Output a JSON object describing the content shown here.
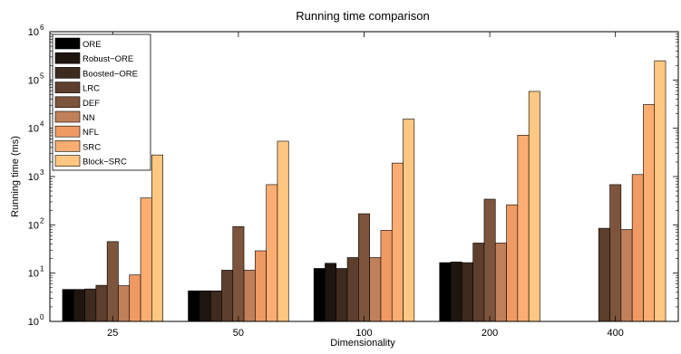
{
  "chart_data": {
    "type": "bar",
    "title": "Running time comparison",
    "xlabel": "Dimensionality",
    "ylabel": "Running time (ms)",
    "y_scale": "log",
    "ylim": [
      1,
      1000000
    ],
    "yticks": [
      {
        "value": 1,
        "base": "10",
        "exp": "0"
      },
      {
        "value": 10,
        "base": "10",
        "exp": "1"
      },
      {
        "value": 100,
        "base": "10",
        "exp": "2"
      },
      {
        "value": 1000,
        "base": "10",
        "exp": "3"
      },
      {
        "value": 10000,
        "base": "10",
        "exp": "4"
      },
      {
        "value": 100000,
        "base": "10",
        "exp": "5"
      },
      {
        "value": 1000000,
        "base": "10",
        "exp": "6"
      }
    ],
    "categories": [
      "25",
      "50",
      "100",
      "200",
      "400"
    ],
    "grid": false,
    "legend_position": "top-left",
    "series": [
      {
        "name": "ORE",
        "color": "#000000",
        "values": [
          4.6,
          4.3,
          12.5,
          16.5,
          null
        ]
      },
      {
        "name": "Robust−ORE",
        "color": "#1f150f",
        "values": [
          4.6,
          4.3,
          16,
          17,
          null
        ]
      },
      {
        "name": "Boosted−ORE",
        "color": "#3e2a1e",
        "values": [
          4.7,
          4.3,
          12.5,
          16.5,
          null
        ]
      },
      {
        "name": "LRC",
        "color": "#5e3f2d",
        "values": [
          5.6,
          11.5,
          21,
          42,
          85
        ]
      },
      {
        "name": "DEF",
        "color": "#7d543c",
        "values": [
          45,
          92,
          170,
          340,
          680
        ]
      },
      {
        "name": "NN",
        "color": "#c0805a",
        "values": [
          5.5,
          11.5,
          21,
          42,
          80
        ]
      },
      {
        "name": "NFL",
        "color": "#f09a63",
        "values": [
          9.2,
          29,
          77,
          260,
          1100
        ]
      },
      {
        "name": "SRC",
        "color": "#fcae72",
        "values": [
          360,
          680,
          1900,
          7200,
          31000
        ]
      },
      {
        "name": "Block−SRC",
        "color": "#ffc781",
        "values": [
          2800,
          5400,
          15500,
          58000,
          250000
        ]
      }
    ]
  }
}
